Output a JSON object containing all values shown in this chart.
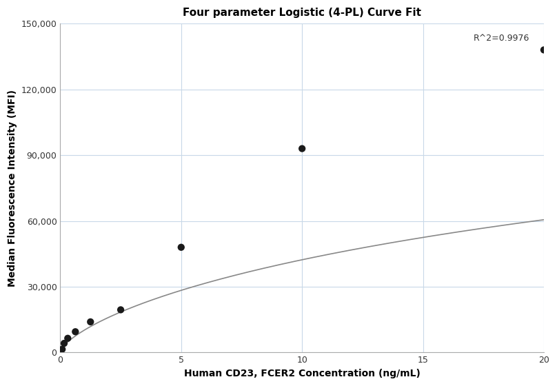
{
  "title": "Four parameter Logistic (4-PL) Curve Fit",
  "xlabel": "Human CD23, FCER2 Concentration (ng/mL)",
  "ylabel": "Median Fluorescence Intensity (MFI)",
  "scatter_x": [
    0.08,
    0.16,
    0.31,
    0.625,
    1.25,
    2.5,
    5.0,
    10.0,
    20.0
  ],
  "scatter_y": [
    1500,
    4200,
    6500,
    9500,
    14000,
    19500,
    48000,
    93000,
    138000
  ],
  "xlim": [
    0,
    20
  ],
  "ylim": [
    0,
    150000
  ],
  "yticks": [
    0,
    30000,
    60000,
    90000,
    120000,
    150000
  ],
  "xticks": [
    0,
    5,
    10,
    15,
    20
  ],
  "r_squared": "R^2=0.9976",
  "curve_color": "#888888",
  "dot_color": "#1a1a1a",
  "background_color": "#ffffff",
  "grid_color": "#c8d8e8",
  "4pl_A": 500.0,
  "4pl_B": 0.72,
  "4pl_C": 55.0,
  "4pl_D": 185000.0,
  "title_fontsize": 11,
  "label_fontsize": 10,
  "tick_fontsize": 9
}
